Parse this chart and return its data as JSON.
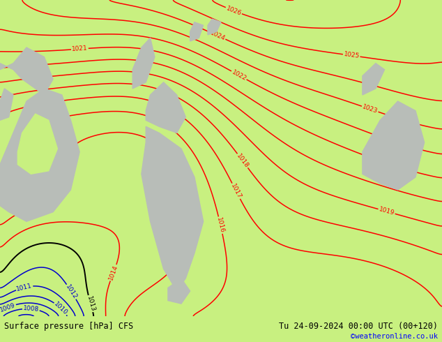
{
  "title_left": "Surface pressure [hPa] CFS",
  "title_right": "Tu 24-09-2024 00:00 UTC (00+120)",
  "copyright": "©weatheronline.co.uk",
  "bg_color": "#c8f080",
  "land_color": "#b8bdb8",
  "red_contour_color": "#ff0000",
  "blue_contour_color": "#0000cc",
  "black_contour_color": "#000000",
  "figsize": [
    6.34,
    4.9
  ],
  "dpi": 100,
  "bottom_bar_color": "#d8d8d8",
  "bottom_bar_height": 0.075
}
